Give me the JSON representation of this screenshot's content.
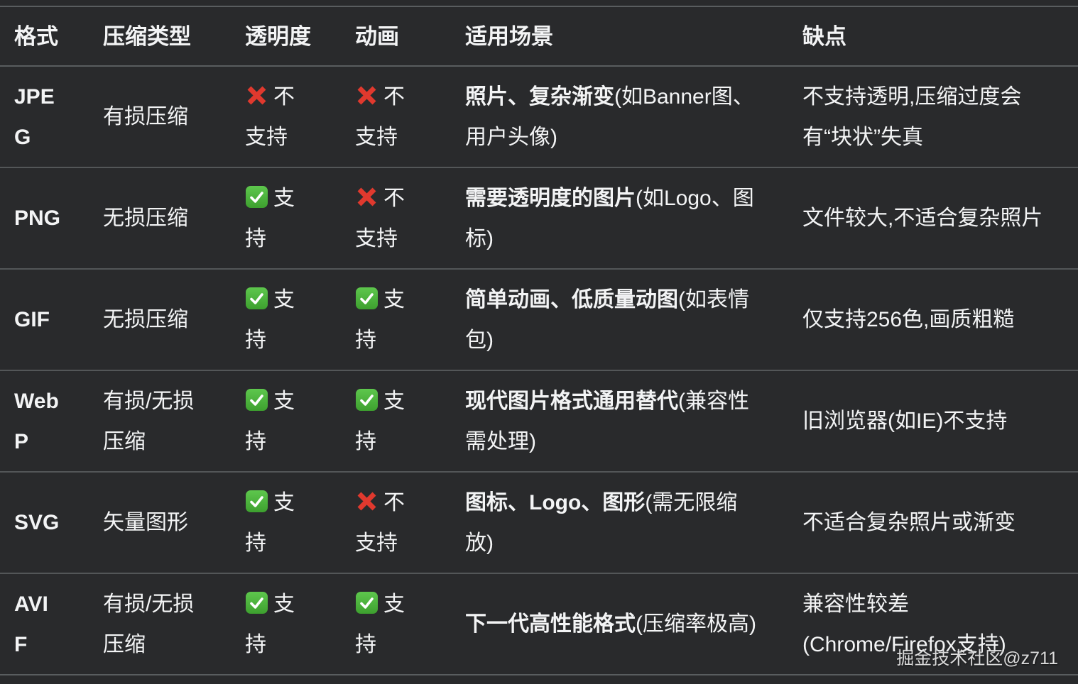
{
  "colors": {
    "background": "#292a2c",
    "text": "#f3f4f5",
    "divider": "#595d5f",
    "cross_red": "#e0392e",
    "check_green": "#4fb83e"
  },
  "watermark": "掘金技术社区@z711",
  "table": {
    "columns": [
      "格式",
      "压缩类型",
      "透明度",
      "动画",
      "适用场景",
      "缺点"
    ],
    "rows": [
      {
        "format": "JPEG",
        "compression": "有损压缩",
        "transparency": {
          "icon": "cross",
          "label": "不支持"
        },
        "animation": {
          "icon": "cross",
          "label": "不支持"
        },
        "scenario_main": "照片、复杂渐变",
        "scenario_note": "(如Banner图、用户头像)",
        "drawback": "不支持透明,压缩过度会有“块状”失真"
      },
      {
        "format": "PNG",
        "compression": "无损压缩",
        "transparency": {
          "icon": "check",
          "label": "支持"
        },
        "animation": {
          "icon": "cross",
          "label": "不支持"
        },
        "scenario_main": "需要透明度的图片",
        "scenario_note": "(如Logo、图标)",
        "drawback": "文件较大,不适合复杂照片"
      },
      {
        "format": "GIF",
        "compression": "无损压缩",
        "transparency": {
          "icon": "check",
          "label": "支持"
        },
        "animation": {
          "icon": "check",
          "label": "支持"
        },
        "scenario_main": "简单动画、低质量动图",
        "scenario_note": "(如表情包)",
        "drawback": "仅支持256色,画质粗糙"
      },
      {
        "format": "WebP",
        "compression": "有损/无损压缩",
        "transparency": {
          "icon": "check",
          "label": "支持"
        },
        "animation": {
          "icon": "check",
          "label": "支持"
        },
        "scenario_main": "现代图片格式通用替代",
        "scenario_note": "(兼容性需处理)",
        "drawback": "旧浏览器(如IE)不支持"
      },
      {
        "format": "SVG",
        "compression": "矢量图形",
        "transparency": {
          "icon": "check",
          "label": "支持"
        },
        "animation": {
          "icon": "cross",
          "label": "不支持"
        },
        "scenario_main": "图标、Logo、图形",
        "scenario_note": "(需无限缩放)",
        "drawback": "不适合复杂照片或渐变"
      },
      {
        "format": "AVIF",
        "compression": "有损/无损压缩",
        "transparency": {
          "icon": "check",
          "label": "支持"
        },
        "animation": {
          "icon": "check",
          "label": "支持"
        },
        "scenario_main": "下一代高性能格式",
        "scenario_note": "(压缩率极高)",
        "drawback": "兼容性较差 (Chrome/Firefox支持)"
      }
    ]
  }
}
